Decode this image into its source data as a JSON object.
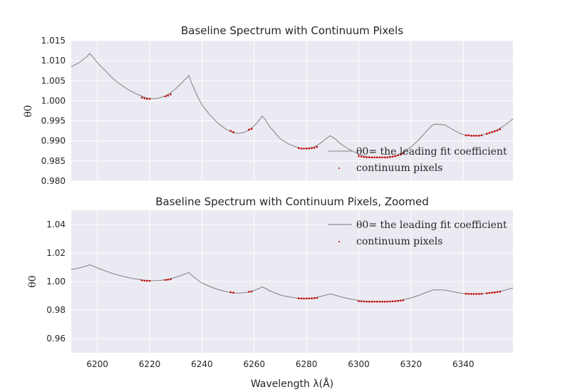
{
  "figure": {
    "xlabel": "Wavelength λ(Å)",
    "background_color": "#eaeaf2",
    "grid_color": "#ffffff",
    "line_color": "#808080",
    "point_color": "#cc0000"
  },
  "chart_data": [
    {
      "type": "line",
      "title": "Baseline Spectrum with Continuum Pixels",
      "ylabel": "θ0",
      "xlim": [
        6190,
        6359
      ],
      "ylim": [
        0.98,
        1.015
      ],
      "grid": true,
      "legend_position": "lower-right",
      "x_ticks": [
        6200,
        6220,
        6240,
        6260,
        6280,
        6300,
        6320,
        6340
      ],
      "x_tick_labels_visible": false,
      "y_ticks": [
        0.98,
        0.985,
        0.99,
        0.995,
        1.0,
        1.005,
        1.01,
        1.015
      ],
      "y_tick_labels": [
        "0.980",
        "0.985",
        "0.990",
        "0.995",
        "1.000",
        "1.005",
        "1.010",
        "1.015"
      ],
      "legend": [
        "θ0= the leading fit coefficient",
        "continuum pixels"
      ],
      "series": [
        {
          "kind": "line",
          "x": [
            6190,
            6193,
            6196,
            6197,
            6198,
            6200,
            6203,
            6206,
            6209,
            6212,
            6215,
            6218,
            6220,
            6223,
            6226,
            6228,
            6230,
            6232,
            6234,
            6235,
            6236,
            6238,
            6240,
            6243,
            6246,
            6249,
            6252,
            6254,
            6256,
            6258,
            6260,
            6262,
            6263,
            6264,
            6266,
            6268,
            6270,
            6273,
            6276,
            6278,
            6280,
            6283,
            6285,
            6287,
            6289,
            6291,
            6293,
            6296,
            6299,
            6302,
            6305,
            6308,
            6311,
            6314,
            6317,
            6320,
            6323,
            6326,
            6328,
            6329,
            6331,
            6333,
            6336,
            6339,
            6341,
            6343,
            6345,
            6347,
            6349,
            6351,
            6353,
            6355,
            6357,
            6359
          ],
          "y": [
            1.0085,
            1.0095,
            1.011,
            1.0118,
            1.0112,
            1.0095,
            1.0075,
            1.0055,
            1.004,
            1.0027,
            1.0017,
            1.0009,
            1.0005,
            1.0006,
            1.0012,
            1.002,
            1.003,
            1.0043,
            1.0056,
            1.0063,
            1.0045,
            1.0015,
            0.999,
            0.9965,
            0.9945,
            0.993,
            0.992,
            0.9919,
            0.9921,
            0.9927,
            0.9938,
            0.9952,
            0.9962,
            0.9955,
            0.9935,
            0.992,
            0.9905,
            0.9893,
            0.9885,
            0.9881,
            0.9881,
            0.9885,
            0.9893,
            0.9903,
            0.9913,
            0.9905,
            0.9893,
            0.988,
            0.987,
            0.9862,
            0.9859,
            0.9859,
            0.9859,
            0.9863,
            0.9872,
            0.9885,
            0.9903,
            0.9925,
            0.9938,
            0.9942,
            0.9941,
            0.994,
            0.9928,
            0.9918,
            0.9914,
            0.9913,
            0.9913,
            0.9914,
            0.9918,
            0.9922,
            0.9928,
            0.9935,
            0.9945,
            0.9955
          ]
        },
        {
          "kind": "scatter",
          "x": [
            6217,
            6218,
            6219,
            6220,
            6226,
            6227,
            6228,
            6251,
            6252,
            6258,
            6259,
            6277,
            6278,
            6279,
            6280,
            6281,
            6282,
            6283,
            6284,
            6300,
            6301,
            6302,
            6303,
            6304,
            6305,
            6306,
            6307,
            6308,
            6309,
            6310,
            6311,
            6312,
            6313,
            6314,
            6315,
            6316,
            6317,
            6341,
            6342,
            6343,
            6344,
            6345,
            6346,
            6347,
            6349,
            6350,
            6351,
            6352,
            6353,
            6354
          ],
          "y": [
            1.0008,
            1.0006,
            1.0005,
            1.0005,
            1.0011,
            1.0013,
            1.0016,
            0.9925,
            0.9922,
            0.9928,
            0.993,
            0.9882,
            0.9881,
            0.9881,
            0.9881,
            0.9881,
            0.9882,
            0.9883,
            0.9885,
            0.9862,
            0.9861,
            0.986,
            0.9859,
            0.9859,
            0.9859,
            0.9859,
            0.9859,
            0.9859,
            0.9859,
            0.9859,
            0.9859,
            0.986,
            0.9861,
            0.9862,
            0.9864,
            0.9866,
            0.9869,
            0.9914,
            0.9914,
            0.9913,
            0.9913,
            0.9913,
            0.9913,
            0.9914,
            0.9918,
            0.992,
            0.9922,
            0.9924,
            0.9926,
            0.9929
          ]
        }
      ]
    },
    {
      "type": "line",
      "title": "Baseline Spectrum with Continuum Pixels, Zoomed",
      "ylabel": "θ0",
      "xlabel": "Wavelength λ(Å)",
      "xlim": [
        6190,
        6359
      ],
      "ylim": [
        0.95,
        1.05
      ],
      "grid": true,
      "legend_position": "upper-right",
      "x_ticks": [
        6200,
        6220,
        6240,
        6260,
        6280,
        6300,
        6320,
        6340
      ],
      "x_tick_labels": [
        "6200",
        "6220",
        "6240",
        "6260",
        "6280",
        "6300",
        "6320",
        "6340"
      ],
      "y_ticks": [
        0.96,
        0.98,
        1.0,
        1.02,
        1.04
      ],
      "y_tick_labels": [
        "0.96",
        "0.98",
        "1.00",
        "1.02",
        "1.04"
      ],
      "legend": [
        "θ0= the leading fit coefficient",
        "continuum pixels"
      ]
    }
  ]
}
